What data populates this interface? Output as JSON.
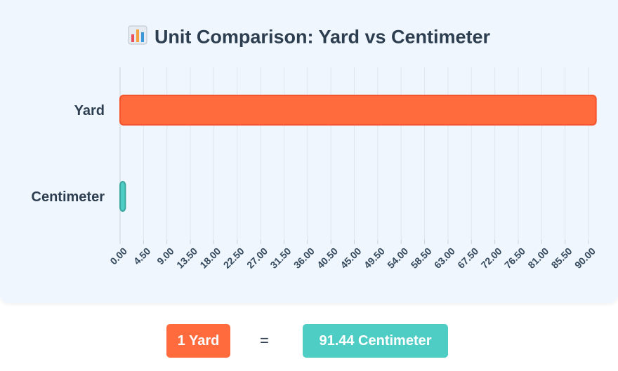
{
  "title": "Unit Comparison: Yard vs Centimeter",
  "title_icon": "bar-chart-icon",
  "chart_data": {
    "type": "bar",
    "orientation": "horizontal",
    "categories": [
      "Yard",
      "Centimeter"
    ],
    "values": [
      91.44,
      1
    ],
    "colors": [
      "#ff6b3d",
      "#4ecdc4"
    ],
    "border_colors": [
      "#f5532a",
      "#3aa89f"
    ],
    "xticks": [
      "0.00",
      "4.50",
      "9.00",
      "13.50",
      "18.00",
      "22.50",
      "27.00",
      "31.50",
      "36.00",
      "40.50",
      "45.00",
      "49.50",
      "54.00",
      "58.50",
      "63.00",
      "67.50",
      "72.00",
      "76.50",
      "81.00",
      "85.50",
      "90.00"
    ],
    "xlim": [
      0,
      90
    ],
    "grid": true
  },
  "footer": {
    "left_value": "1 Yard",
    "equals": "=",
    "right_value": "91.44 Centimeter",
    "left_color": "#ff6b3d",
    "right_color": "#4ecdc4"
  }
}
